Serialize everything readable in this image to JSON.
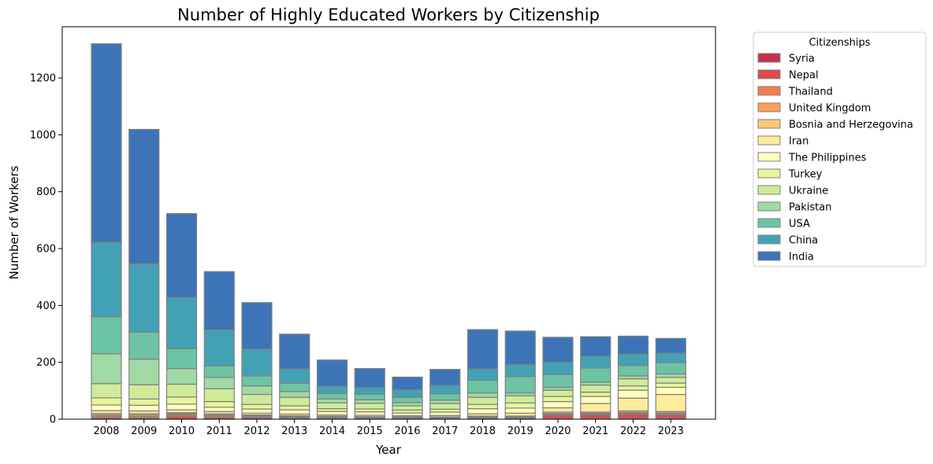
{
  "chart_data": {
    "type": "bar",
    "stacked": true,
    "title": "Number of Highly Educated Workers by Citizenship",
    "xlabel": "Year",
    "ylabel": "Number of Workers",
    "ylim": [
      0,
      1380
    ],
    "yticks": [
      0,
      200,
      400,
      600,
      800,
      1000,
      1200
    ],
    "grid": false,
    "legend": {
      "title": "Citizenships",
      "placement": "outside-top-right"
    },
    "categories": [
      "2008",
      "2009",
      "2010",
      "2011",
      "2012",
      "2013",
      "2014",
      "2015",
      "2016",
      "2017",
      "2018",
      "2019",
      "2020",
      "2021",
      "2022",
      "2023"
    ],
    "series": [
      {
        "name": "Syria",
        "color": "#c9304f",
        "values": [
          0,
          0,
          0,
          0,
          0,
          0,
          0,
          0,
          0,
          0,
          0,
          0,
          2,
          2,
          3,
          3
        ]
      },
      {
        "name": "Nepal",
        "color": "#de4b4b",
        "values": [
          5,
          4,
          10,
          6,
          5,
          3,
          2,
          2,
          2,
          2,
          2,
          3,
          12,
          13,
          15,
          12
        ]
      },
      {
        "name": "Thailand",
        "color": "#f47d4a",
        "values": [
          5,
          5,
          5,
          5,
          3,
          3,
          2,
          2,
          2,
          2,
          3,
          3,
          3,
          3,
          3,
          4
        ]
      },
      {
        "name": "United Kingdom",
        "color": "#fba05b",
        "values": [
          5,
          5,
          4,
          4,
          4,
          3,
          3,
          2,
          2,
          2,
          3,
          2,
          3,
          3,
          3,
          3
        ]
      },
      {
        "name": "Bosnia and Herzegovina",
        "color": "#fdc978",
        "values": [
          5,
          5,
          4,
          4,
          3,
          3,
          3,
          3,
          2,
          2,
          3,
          3,
          5,
          4,
          5,
          5
        ]
      },
      {
        "name": "Iran",
        "color": "#feeb9d",
        "values": [
          10,
          10,
          10,
          8,
          6,
          6,
          5,
          5,
          4,
          5,
          8,
          10,
          15,
          30,
          45,
          60
        ]
      },
      {
        "name": "The Philippines",
        "color": "#fefebd",
        "values": [
          20,
          20,
          20,
          15,
          15,
          15,
          12,
          12,
          10,
          12,
          18,
          18,
          22,
          25,
          28,
          25
        ]
      },
      {
        "name": "Turkey",
        "color": "#e6f598",
        "values": [
          25,
          22,
          25,
          20,
          16,
          14,
          10,
          10,
          10,
          10,
          15,
          18,
          18,
          15,
          15,
          15
        ]
      },
      {
        "name": "Ukraine",
        "color": "#cfeb9a",
        "values": [
          50,
          50,
          45,
          45,
          35,
          30,
          20,
          20,
          15,
          20,
          25,
          25,
          22,
          25,
          25,
          20
        ]
      },
      {
        "name": "Pakistan",
        "color": "#a1d9a4",
        "values": [
          105,
          90,
          55,
          40,
          30,
          20,
          14,
          12,
          11,
          12,
          15,
          10,
          10,
          10,
          10,
          12
        ]
      },
      {
        "name": "USA",
        "color": "#6cc4a4",
        "values": [
          130,
          95,
          70,
          40,
          35,
          30,
          20,
          20,
          19,
          22,
          45,
          58,
          45,
          50,
          37,
          40
        ]
      },
      {
        "name": "China",
        "color": "#43a1b5",
        "values": [
          262,
          240,
          180,
          127,
          95,
          50,
          25,
          23,
          26,
          30,
          40,
          42,
          43,
          42,
          40,
          33
        ]
      },
      {
        "name": "India",
        "color": "#3d74b7",
        "values": [
          698,
          473,
          295,
          205,
          163,
          122,
          92,
          67,
          45,
          56,
          138,
          118,
          88,
          68,
          63,
          52
        ]
      }
    ]
  }
}
